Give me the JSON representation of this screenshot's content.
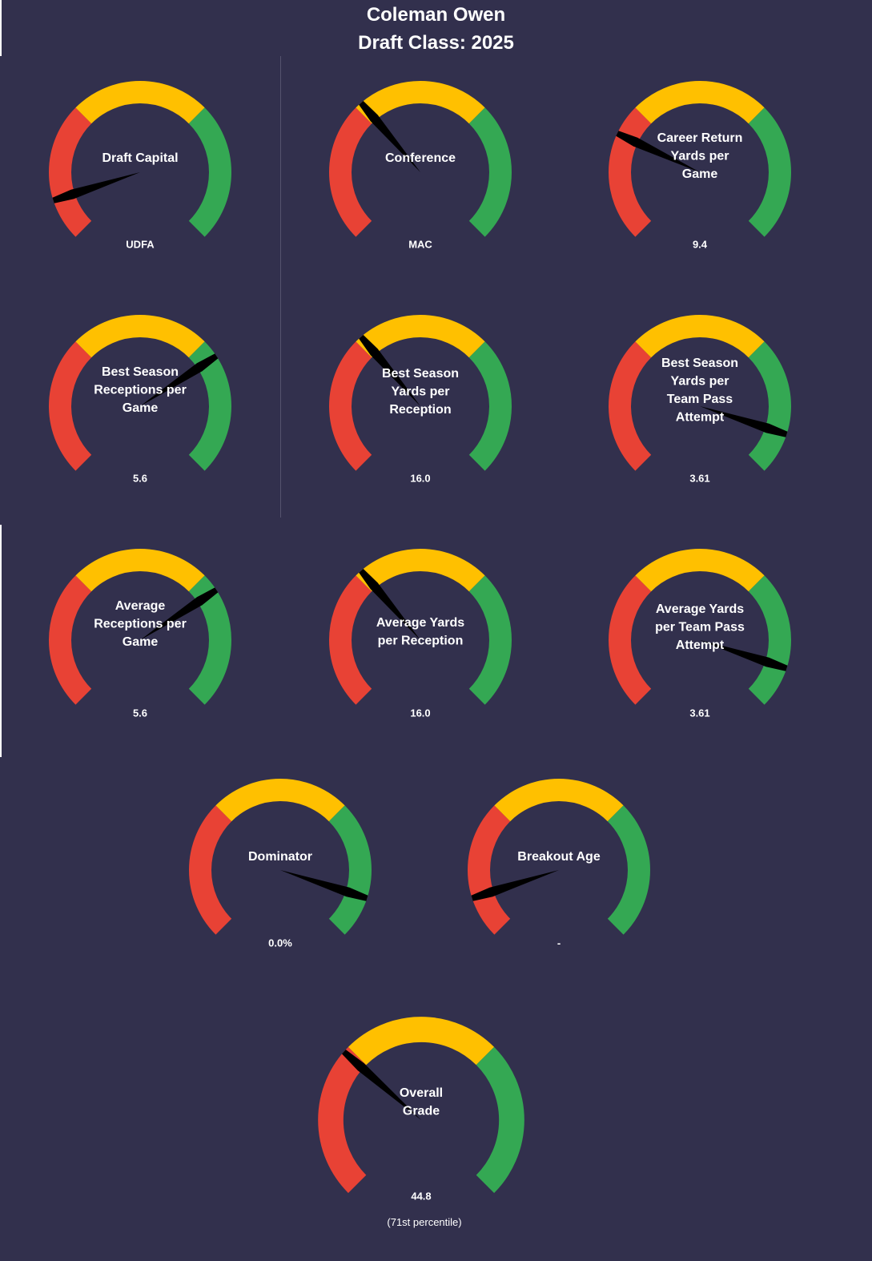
{
  "header": {
    "title": "Coleman Owen",
    "subtitle": "Draft Class: 2025"
  },
  "colors": {
    "background": "#32304d",
    "red": "#e84235",
    "yellow": "#ffc000",
    "green": "#34a853",
    "needle": "#000000",
    "text": "#ffffff"
  },
  "chart_data": [
    {
      "type": "gauge",
      "title": "Draft Capital",
      "value_label": "UDFA",
      "needle": 0.1
    },
    {
      "type": "gauge",
      "title": "Conference",
      "value_label": "MAC",
      "needle": 0.35
    },
    {
      "type": "gauge",
      "title": "Career Return Yards per Game",
      "value_label": "9.4",
      "needle": 0.26
    },
    {
      "type": "gauge",
      "title": "Best Season Receptions per Game",
      "value_label": "5.6",
      "needle": 0.71
    },
    {
      "type": "gauge",
      "title": "Best Season Yards per Reception",
      "value_label": "16.0",
      "needle": 0.35
    },
    {
      "type": "gauge",
      "title": "Best Season Yards per Team Pass Attempt",
      "value_label": "3.61",
      "needle": 0.9
    },
    {
      "type": "gauge",
      "title": "Average Receptions per Game",
      "value_label": "5.6",
      "needle": 0.71
    },
    {
      "type": "gauge",
      "title": "Average Yards per Reception",
      "value_label": "16.0",
      "needle": 0.35
    },
    {
      "type": "gauge",
      "title": "Average Yards per Team Pass Attempt",
      "value_label": "3.61",
      "needle": 0.9
    },
    {
      "type": "gauge",
      "title": "Dominator",
      "value_label": "0.0%",
      "needle": 0.9
    },
    {
      "type": "gauge",
      "title": "Breakout Age",
      "value_label": "-",
      "needle": 0.1
    },
    {
      "type": "gauge",
      "title": "Overall Grade",
      "value_label": "44.8",
      "caption": "(71st percentile)",
      "needle": 0.32
    }
  ]
}
